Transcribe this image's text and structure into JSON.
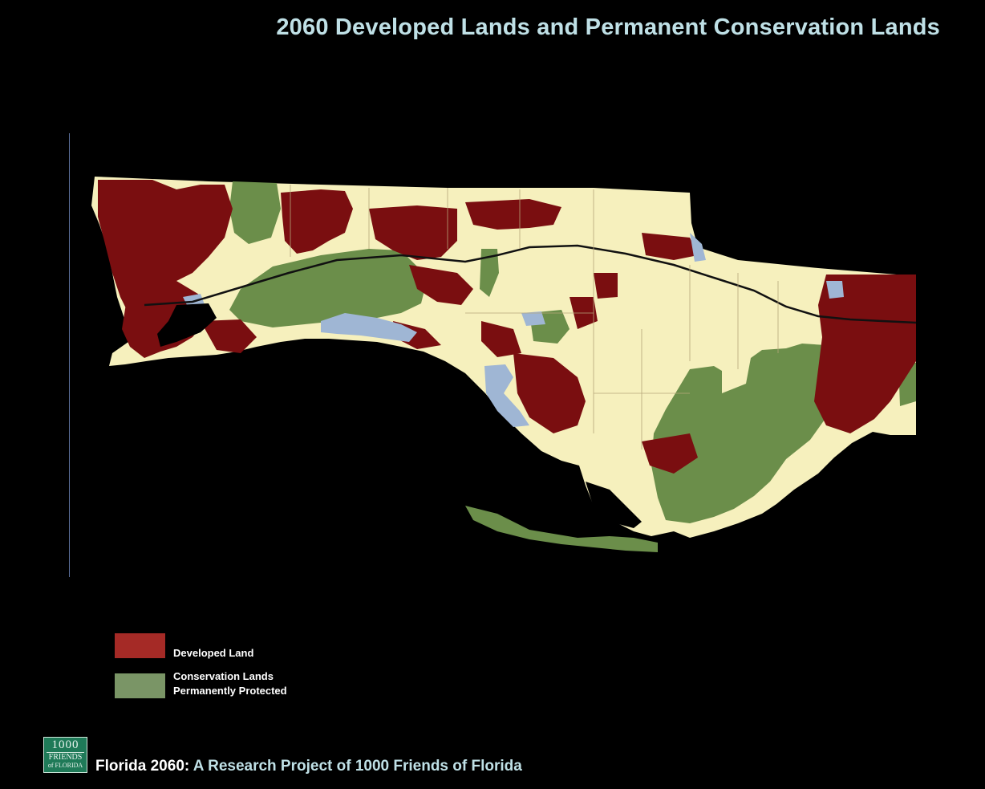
{
  "title": "2060 Developed Lands and Permanent Conservation Lands",
  "colors": {
    "background": "#000000",
    "title": "#bfe0e6",
    "land": "#f6f0bd",
    "developed": "#7a0e10",
    "conservation": "#6b8e4a",
    "water": "#9fb6d4",
    "road": "#111111",
    "legend_developed": "#a52a26",
    "legend_conservation": "#7a9566"
  },
  "map": {
    "region": "Florida Panhandle",
    "icon": "map-of-florida-panhandle"
  },
  "legend": {
    "items": [
      {
        "label": "Developed Land",
        "color": "#a52a26"
      },
      {
        "label_line1": "Conservation Lands",
        "label_line2": "Permanently Protected",
        "color": "#7a9566"
      }
    ]
  },
  "logo": {
    "line1": "1000",
    "line2": "FRIENDS",
    "line3": "of FLORIDA"
  },
  "footer": {
    "prefix": "Florida 2060:",
    "suffix": "A Research Project of 1000 Friends of Florida"
  }
}
